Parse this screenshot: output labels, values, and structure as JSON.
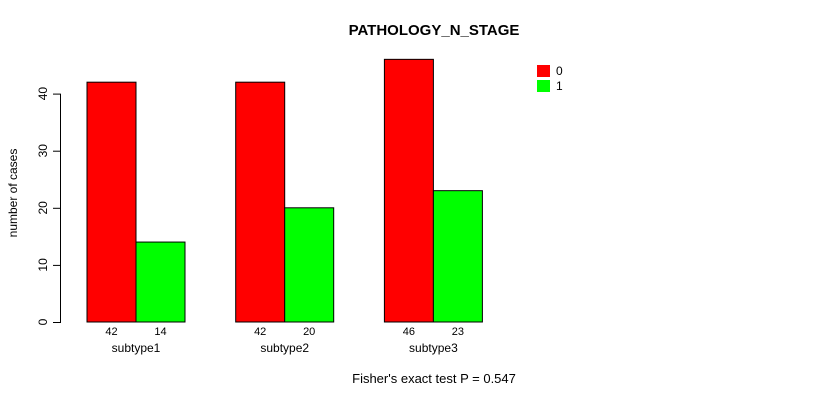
{
  "chart_data": {
    "type": "bar",
    "title": "PATHOLOGY_N_STAGE",
    "categories": [
      "subtype1",
      "subtype2",
      "subtype3"
    ],
    "series": [
      {
        "name": "0",
        "color": "#ff0000",
        "values": [
          42,
          42,
          46
        ]
      },
      {
        "name": "1",
        "color": "#00ff00",
        "values": [
          14,
          20,
          23
        ]
      }
    ],
    "bar_value_labels": [
      [
        42,
        42,
        46
      ],
      [
        14,
        20,
        23
      ]
    ],
    "xlabel": "",
    "ylabel": "number of cases",
    "ylim": [
      0,
      46
    ],
    "yticks": [
      0,
      10,
      20,
      30,
      40
    ],
    "grid": false,
    "legend": {
      "position": "right",
      "entries": [
        "0",
        "1"
      ]
    },
    "annotation": "Fisher's exact test P = 0.547"
  }
}
